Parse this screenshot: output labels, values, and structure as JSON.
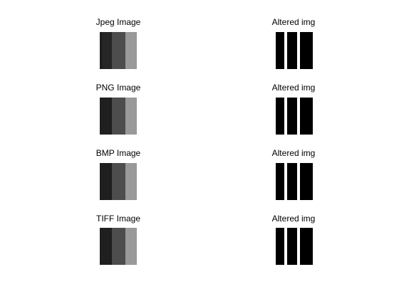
{
  "figure": {
    "background": "#ffffff",
    "rows": [
      {
        "left_title": "Jpeg Image",
        "right_title": "Altered img",
        "original_colors": [
          "#1f1f1f",
          "#262626",
          "#4d4d4d",
          "#999999"
        ],
        "altered_colors": [
          "#000000",
          "#ffffff",
          "#000000",
          "#ffffff",
          "#000000"
        ]
      },
      {
        "left_title": "PNG Image",
        "right_title": "Altered img",
        "original_colors": [
          "#1f1f1f",
          "#1f1f1f",
          "#4d4d4d",
          "#999999"
        ],
        "altered_colors": [
          "#000000",
          "#ffffff",
          "#000000",
          "#ffffff",
          "#000000"
        ]
      },
      {
        "left_title": "BMP Image",
        "right_title": "Altered img",
        "original_colors": [
          "#1f1f1f",
          "#1f1f1f",
          "#4d4d4d",
          "#999999"
        ],
        "altered_colors": [
          "#000000",
          "#ffffff",
          "#000000",
          "#ffffff",
          "#000000"
        ]
      },
      {
        "left_title": "TIFF Image",
        "right_title": "Altered img",
        "original_colors": [
          "#1f1f1f",
          "#1f1f1f",
          "#4d4d4d",
          "#999999"
        ],
        "altered_colors": [
          "#000000",
          "#ffffff",
          "#000000",
          "#ffffff",
          "#000000"
        ]
      }
    ]
  }
}
